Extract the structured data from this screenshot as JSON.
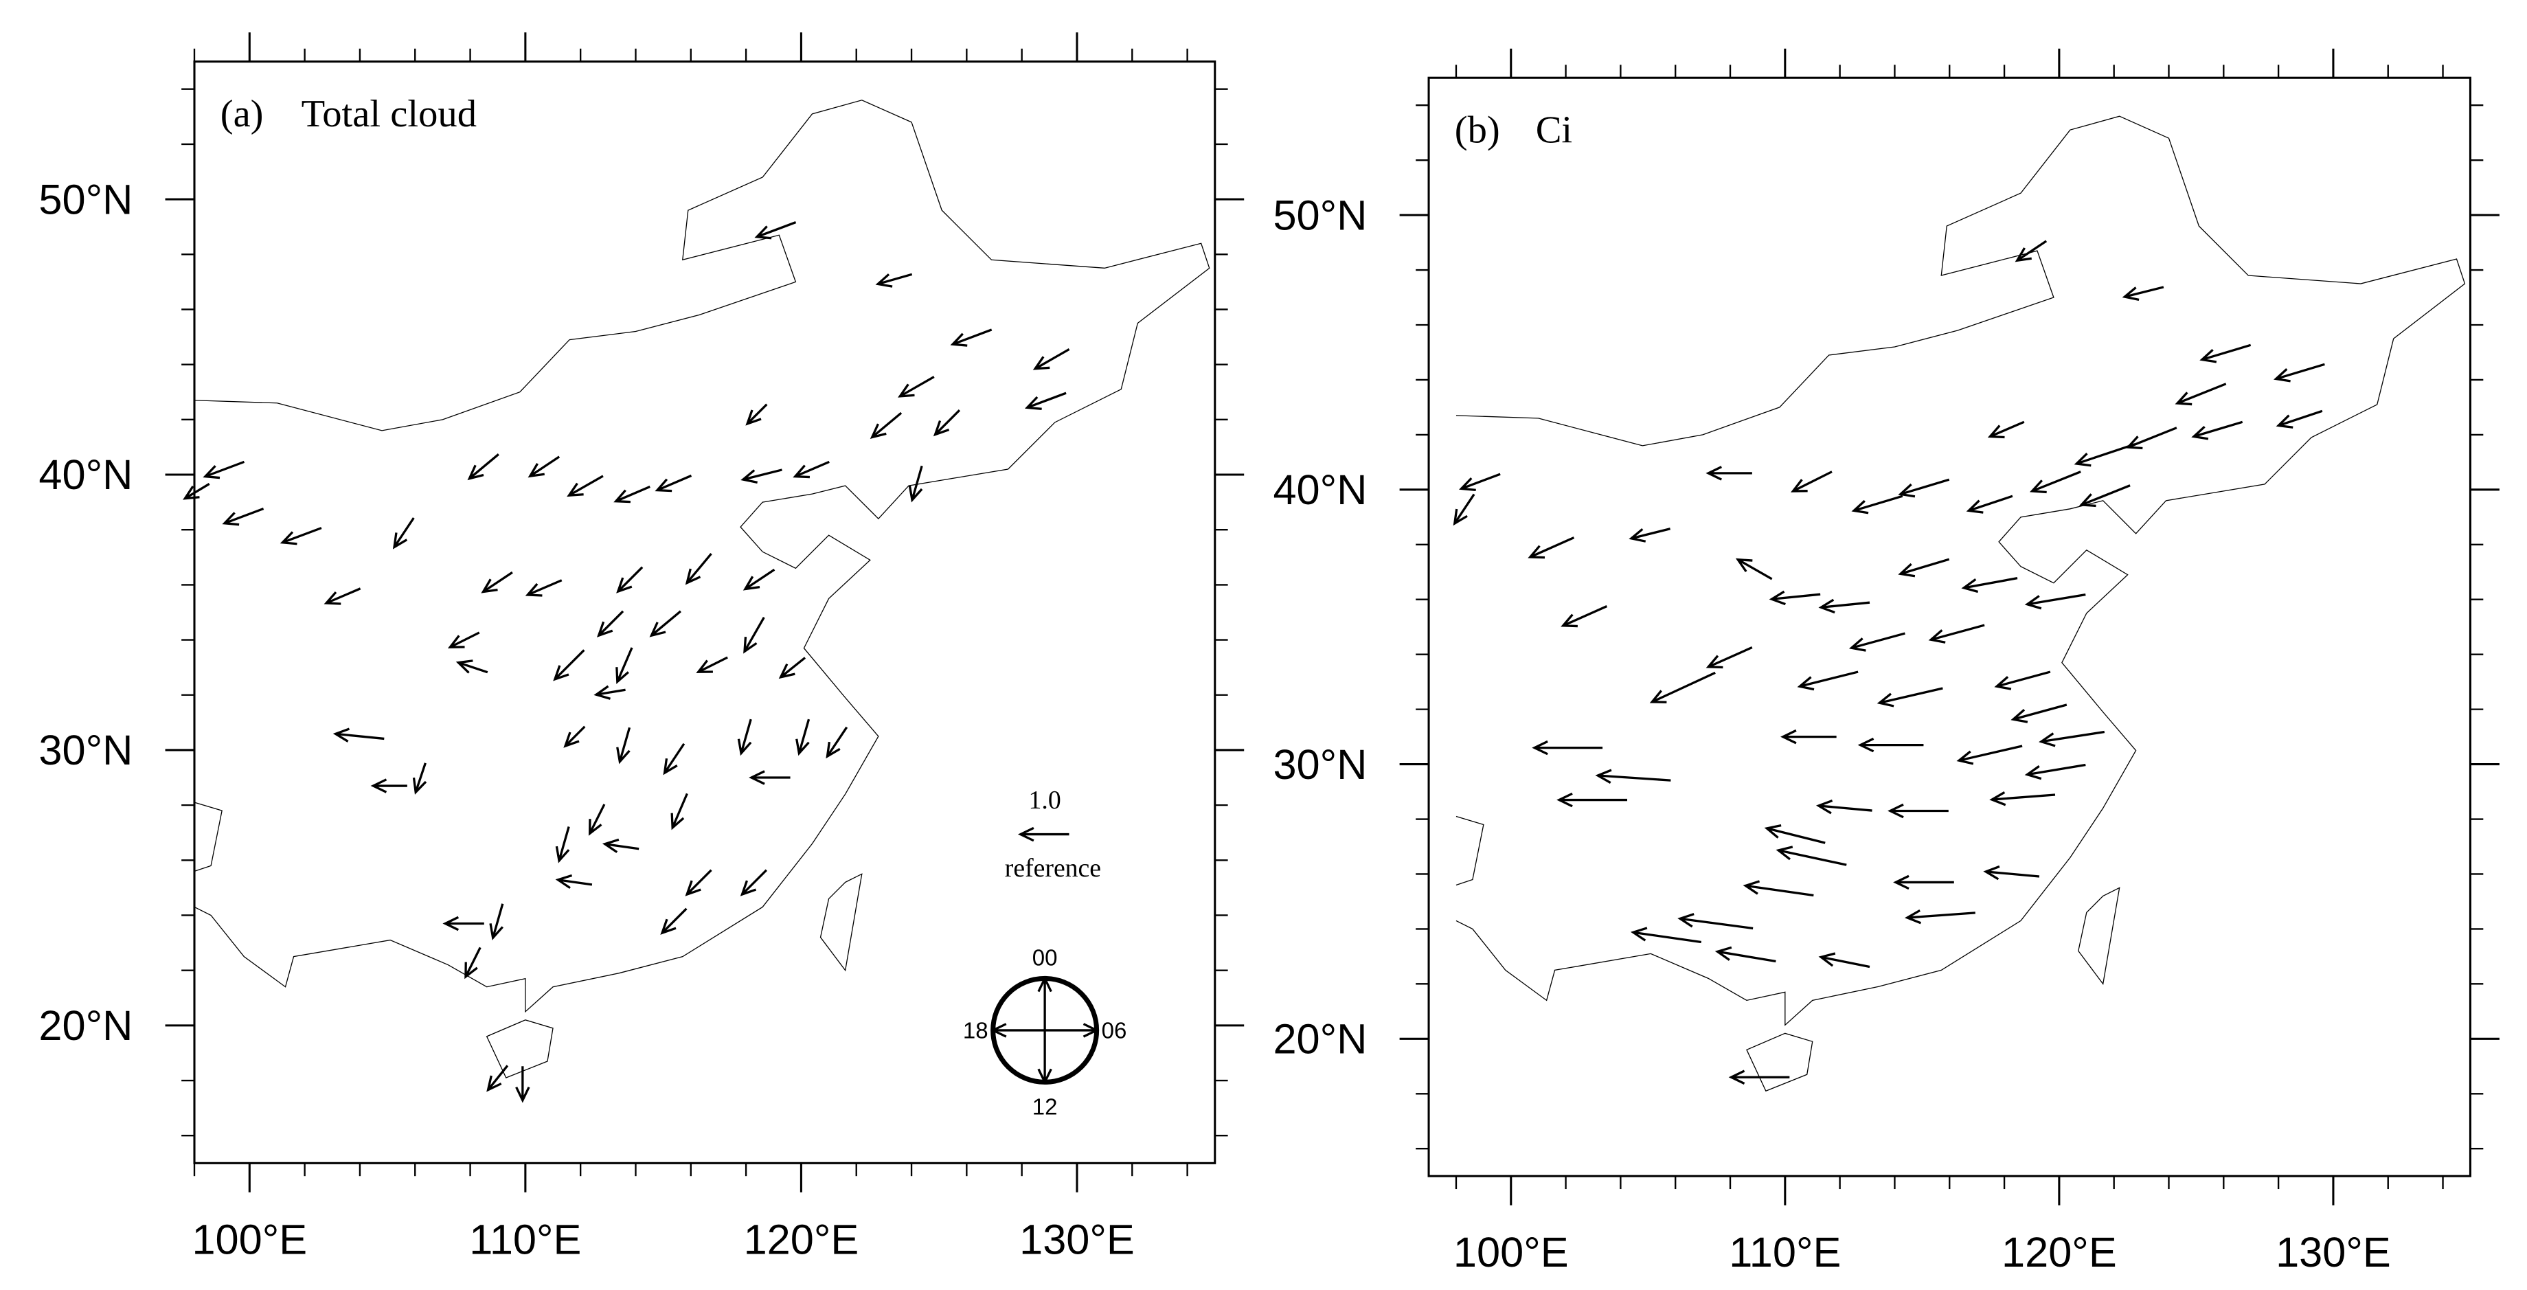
{
  "maps": [
    {
      "panel": "(a)",
      "title": "Total cloud",
      "xlim": [
        98,
        135
      ],
      "ylim": [
        15,
        55
      ],
      "xticks": [
        {
          "value": 100,
          "label": "100°E"
        },
        {
          "value": 110,
          "label": "110°E"
        },
        {
          "value": 120,
          "label": "120°E"
        },
        {
          "value": 130,
          "label": "130°E"
        }
      ],
      "yticks": [
        {
          "value": 20,
          "label": "20°N"
        },
        {
          "value": 30,
          "label": "30°N"
        },
        {
          "value": 40,
          "label": "40°N"
        },
        {
          "value": 50,
          "label": "50°N"
        }
      ],
      "reference": {
        "value": 1.0,
        "label": "1.0",
        "text": "reference"
      },
      "clock": [
        "00",
        "06",
        "12",
        "18"
      ],
      "vectors": {
        "lon": [
          119.1,
          123.4,
          126.2,
          129.1,
          128.9,
          124.2,
          125.3,
          123.1,
          118.4,
          124.2,
          120.4,
          118.6,
          115.4,
          113.9,
          112.2,
          110.7,
          108.5,
          105.6,
          101.9,
          99.8,
          99.1,
          98.1,
          103.4,
          107.8,
          108.1,
          109.0,
          110.7,
          113.8,
          116.3,
          118.5,
          115.1,
          113.1,
          111.6,
          113.6,
          116.8,
          119.7,
          118.3,
          113.1,
          104.0,
          105.1,
          106.2,
          111.8,
          113.6,
          115.4,
          118.0,
          120.1,
          118.9,
          121.3,
          115.6,
          112.6,
          111.4,
          113.5,
          111.8,
          116.3,
          118.3,
          115.4,
          107.8,
          109.0,
          108.1,
          109.0,
          109.9
        ],
        "lat": [
          48.9,
          47.1,
          45.0,
          44.2,
          42.7,
          43.2,
          41.9,
          41.8,
          42.2,
          39.7,
          40.2,
          40.0,
          39.7,
          39.3,
          39.6,
          40.3,
          40.3,
          37.9,
          37.8,
          38.5,
          40.2,
          39.4,
          35.6,
          34.0,
          33.0,
          36.1,
          35.9,
          36.2,
          36.6,
          36.2,
          34.6,
          34.6,
          33.1,
          33.1,
          33.1,
          33.0,
          34.2,
          32.1,
          30.5,
          28.7,
          29.0,
          30.5,
          30.2,
          29.7,
          30.5,
          30.5,
          29.0,
          30.3,
          27.8,
          27.5,
          26.6,
          26.5,
          25.2,
          25.2,
          25.2,
          23.8,
          23.7,
          23.8,
          22.3,
          18.1,
          17.9
        ],
        "u": [
          -0.8,
          -0.7,
          -0.8,
          -0.7,
          -0.8,
          -0.7,
          -0.5,
          -0.6,
          -0.4,
          -0.2,
          -0.7,
          -0.8,
          -0.7,
          -0.7,
          -0.7,
          -0.6,
          -0.6,
          -0.4,
          -0.8,
          -0.8,
          -0.8,
          -0.5,
          -0.7,
          -0.6,
          -0.6,
          -0.6,
          -0.7,
          -0.5,
          -0.5,
          -0.6,
          -0.6,
          -0.5,
          -0.6,
          -0.3,
          -0.6,
          -0.5,
          -0.4,
          -0.6,
          -1.0,
          -0.7,
          -0.2,
          -0.4,
          -0.2,
          -0.4,
          -0.2,
          -0.2,
          -0.8,
          -0.4,
          -0.3,
          -0.3,
          -0.2,
          -0.7,
          -0.7,
          -0.5,
          -0.5,
          -0.5,
          -0.8,
          -0.2,
          -0.3,
          -0.4,
          0.0
        ],
        "v": [
          -0.3,
          -0.2,
          -0.3,
          -0.4,
          -0.3,
          -0.4,
          -0.5,
          -0.5,
          -0.4,
          -0.7,
          -0.3,
          -0.2,
          -0.3,
          -0.3,
          -0.4,
          -0.4,
          -0.5,
          -0.6,
          -0.3,
          -0.3,
          -0.3,
          -0.3,
          -0.3,
          -0.3,
          0.2,
          -0.4,
          -0.3,
          -0.5,
          -0.6,
          -0.4,
          -0.5,
          -0.5,
          -0.6,
          -0.7,
          -0.3,
          -0.4,
          -0.7,
          -0.1,
          0.1,
          0.0,
          -0.6,
          -0.4,
          -0.7,
          -0.6,
          -0.7,
          -0.7,
          0.0,
          -0.6,
          -0.7,
          -0.6,
          -0.7,
          0.1,
          0.1,
          -0.5,
          -0.5,
          -0.5,
          0.0,
          -0.7,
          -0.6,
          -0.5,
          -0.7
        ]
      }
    },
    {
      "panel": "(b)",
      "title": "Ci",
      "xlim": [
        97,
        135
      ],
      "ylim": [
        15,
        55
      ],
      "xticks": [
        {
          "value": 100,
          "label": "100°E"
        },
        {
          "value": 110,
          "label": "110°E"
        },
        {
          "value": 120,
          "label": "120°E"
        },
        {
          "value": 130,
          "label": "130°E"
        }
      ],
      "yticks": [
        {
          "value": 20,
          "label": "20°N"
        },
        {
          "value": 30,
          "label": "30°N"
        },
        {
          "value": 40,
          "label": "40°N"
        },
        {
          "value": 50,
          "label": "50°N"
        }
      ],
      "vectors": {
        "lon": [
          119.0,
          123.1,
          126.1,
          128.8,
          128.8,
          125.2,
          125.8,
          123.4,
          121.7,
          118.1,
          121.7,
          119.9,
          117.5,
          115.1,
          113.4,
          111.0,
          108.0,
          105.1,
          101.5,
          98.9,
          98.3,
          102.7,
          108.9,
          110.4,
          112.2,
          115.1,
          117.5,
          119.9,
          116.3,
          113.4,
          108.0,
          106.3,
          111.6,
          114.6,
          118.7,
          119.3,
          120.5,
          110.9,
          113.9,
          117.5,
          119.9,
          102.1,
          104.5,
          103.0,
          112.2,
          114.9,
          118.7,
          110.4,
          111.0,
          109.8,
          115.1,
          118.3,
          115.7,
          107.5,
          105.7,
          108.6,
          112.2,
          109.1
        ],
        "lat": [
          48.7,
          47.2,
          45.0,
          44.3,
          42.6,
          43.5,
          42.2,
          41.9,
          41.3,
          42.2,
          39.8,
          40.3,
          39.5,
          40.1,
          39.5,
          40.3,
          40.6,
          38.4,
          37.9,
          40.3,
          39.3,
          35.4,
          37.1,
          36.1,
          35.8,
          37.2,
          36.6,
          36.0,
          34.8,
          34.5,
          33.9,
          32.8,
          33.1,
          32.5,
          33.1,
          31.9,
          31.0,
          31.0,
          30.7,
          30.4,
          29.8,
          30.6,
          29.5,
          28.7,
          28.4,
          28.3,
          28.8,
          27.4,
          26.6,
          25.4,
          25.7,
          26.0,
          24.5,
          24.2,
          23.7,
          23.0,
          22.8,
          18.6
        ],
        "u": [
          -0.6,
          -0.8,
          -1.0,
          -1.0,
          -0.9,
          -1.0,
          -1.0,
          -1.0,
          -1.2,
          -0.7,
          -1.0,
          -1.0,
          -0.9,
          -1.0,
          -1.0,
          -0.8,
          -0.9,
          -0.8,
          -0.9,
          -0.8,
          -0.4,
          -0.9,
          -0.7,
          -1.0,
          -1.0,
          -1.0,
          -1.1,
          -1.2,
          -1.1,
          -1.1,
          -0.9,
          -1.3,
          -1.2,
          -1.3,
          -1.1,
          -1.1,
          -1.3,
          -1.1,
          -1.3,
          -1.3,
          -1.2,
          -1.4,
          -1.5,
          -1.4,
          -1.1,
          -1.2,
          -1.3,
          -1.2,
          -1.4,
          -1.4,
          -1.2,
          -1.1,
          -1.4,
          -1.5,
          -1.4,
          -1.2,
          -1.0,
          -1.2
        ],
        "v": [
          -0.4,
          -0.2,
          -0.3,
          -0.3,
          -0.3,
          -0.4,
          -0.3,
          -0.4,
          -0.4,
          -0.3,
          -0.4,
          -0.4,
          -0.3,
          -0.3,
          -0.3,
          -0.4,
          0.0,
          -0.2,
          -0.4,
          -0.3,
          -0.6,
          -0.4,
          0.4,
          -0.1,
          -0.1,
          -0.3,
          -0.2,
          -0.2,
          -0.3,
          -0.3,
          -0.4,
          -0.6,
          -0.3,
          -0.3,
          -0.3,
          -0.3,
          -0.2,
          0.0,
          0.0,
          -0.3,
          -0.2,
          0.0,
          0.1,
          0.0,
          0.1,
          0.0,
          -0.1,
          0.3,
          0.3,
          0.2,
          0.0,
          0.1,
          -0.1,
          0.2,
          0.2,
          0.2,
          0.2,
          0.0
        ]
      }
    }
  ]
}
